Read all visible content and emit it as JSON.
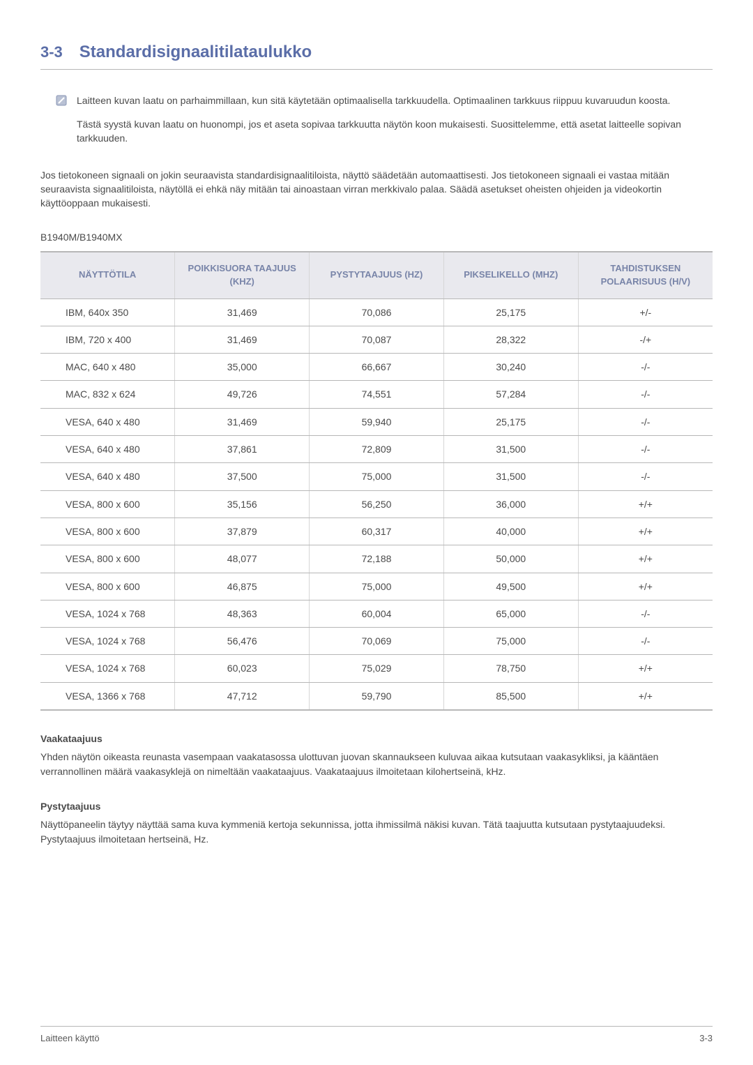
{
  "colors": {
    "heading": "#5b6ea8",
    "text": "#4a4a4a",
    "tableHeaderBg": "#e9e9ee",
    "tableHeaderText": "#7884a8",
    "rule": "#b7b7b7",
    "cellDivider": "#d6d6d6",
    "noteIconFill": "#b9c1d4",
    "noteIconStroke": "#8a96b5"
  },
  "heading": {
    "number": "3-3",
    "title": "Standardisignaalitilataulukko"
  },
  "note": {
    "p1": "Laitteen kuvan laatu on parhaimmillaan, kun sitä käytetään optimaalisella tarkkuudella. Optimaalinen tarkkuus riippuu kuvaruudun koosta.",
    "p2": "Tästä syystä kuvan laatu on huonompi, jos et aseta sopivaa tarkkuutta näytön koon mukaisesti. Suosittelemme, että asetat laitteelle sopivan tarkkuuden."
  },
  "intro": "Jos tietokoneen signaali on jokin seuraavista standardisignaalitiloista, näyttö säädetään automaattisesti. Jos tietokoneen signaali ei vastaa mitään seuraavista signaalitiloista, näytöllä ei ehkä näy mitään tai ainoastaan virran merkkivalo palaa. Säädä asetukset oheisten ohjeiden ja videokortin käyttöoppaan mukaisesti.",
  "model": "B1940M/B1940MX",
  "table": {
    "columns": [
      "NÄYTTÖTILA",
      "POIKKISUORA TAAJUUS (KHZ)",
      "PYSTYTAAJUUS (HZ)",
      "PIKSELIKELLO (MHZ)",
      "TAHDISTUKSEN POLAARISUUS (H/V)"
    ],
    "rows": [
      [
        "IBM, 640x 350",
        "31,469",
        "70,086",
        "25,175",
        "+/-"
      ],
      [
        "IBM, 720 x 400",
        "31,469",
        "70,087",
        "28,322",
        "-/+"
      ],
      [
        "MAC, 640 x 480",
        "35,000",
        "66,667",
        "30,240",
        "-/-"
      ],
      [
        "MAC, 832 x 624",
        "49,726",
        "74,551",
        "57,284",
        "-/-"
      ],
      [
        "VESA, 640 x 480",
        "31,469",
        "59,940",
        "25,175",
        "-/-"
      ],
      [
        "VESA, 640 x 480",
        "37,861",
        "72,809",
        "31,500",
        "-/-"
      ],
      [
        "VESA, 640 x 480",
        "37,500",
        "75,000",
        "31,500",
        "-/-"
      ],
      [
        "VESA, 800 x 600",
        "35,156",
        "56,250",
        "36,000",
        "+/+"
      ],
      [
        "VESA, 800 x 600",
        "37,879",
        "60,317",
        "40,000",
        "+/+"
      ],
      [
        "VESA, 800 x 600",
        "48,077",
        "72,188",
        "50,000",
        "+/+"
      ],
      [
        "VESA, 800 x 600",
        "46,875",
        "75,000",
        "49,500",
        "+/+"
      ],
      [
        "VESA, 1024 x 768",
        "48,363",
        "60,004",
        "65,000",
        "-/-"
      ],
      [
        "VESA, 1024 x 768",
        "56,476",
        "70,069",
        "75,000",
        "-/-"
      ],
      [
        "VESA, 1024 x 768",
        "60,023",
        "75,029",
        "78,750",
        "+/+"
      ],
      [
        "VESA, 1366 x 768",
        "47,712",
        "59,790",
        "85,500",
        "+/+"
      ]
    ]
  },
  "defs": {
    "h1": "Vaakataajuus",
    "b1": "Yhden näytön oikeasta reunasta vasempaan vaakatasossa ulottuvan juovan skannaukseen kuluvaa aikaa kutsutaan vaakasykliksi, ja kääntäen verrannollinen määrä vaakasyklejä on nimeltään vaakataajuus. Vaakataajuus ilmoitetaan kilohertseinä, kHz.",
    "h2": "Pystytaajuus",
    "b2": "Näyttöpaneelin täytyy näyttää sama kuva kymmeniä kertoja sekunnissa, jotta ihmissilmä näkisi kuvan. Tätä taajuutta kutsutaan pystytaajuudeksi. Pystytaajuus ilmoitetaan hertseinä, Hz."
  },
  "footer": {
    "left": "Laitteen käyttö",
    "right": "3-3"
  }
}
